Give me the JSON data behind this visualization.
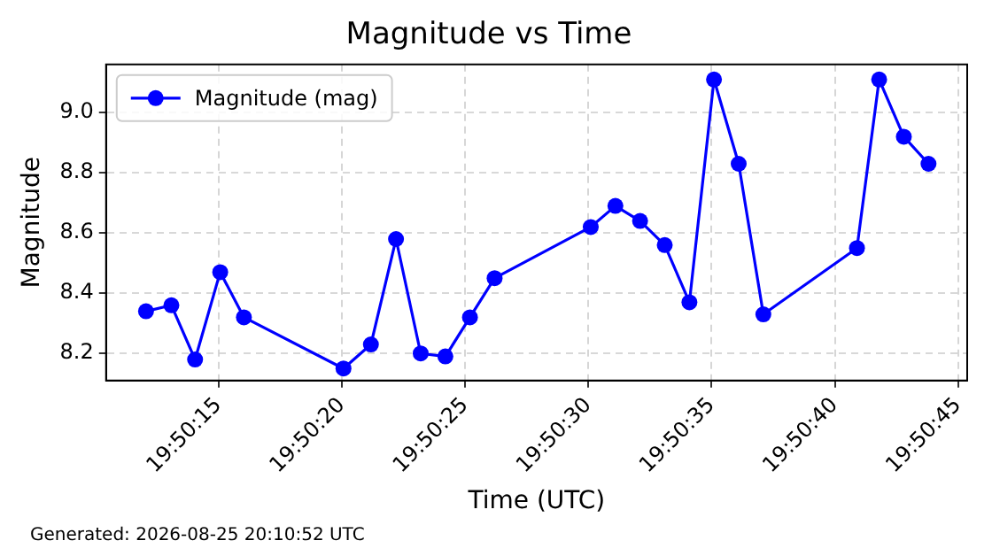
{
  "chart_data": {
    "type": "line",
    "title": "Magnitude vs Time",
    "xlabel": "Time (UTC)",
    "ylabel": "Magnitude",
    "x": [
      19.836683,
      19.836969,
      19.837236,
      19.837519,
      19.837786,
      19.838908,
      19.839217,
      19.8395,
      19.839778,
      19.840056,
      19.840333,
      19.840611,
      19.841694,
      19.841972,
      19.84225,
      19.842528,
      19.842806,
      19.843083,
      19.843361,
      19.843639,
      19.844694,
      19.844944,
      19.845222,
      19.8455
    ],
    "series": [
      {
        "name": "Magnitude (mag)",
        "color": "#0000ff",
        "values": [
          8.34,
          8.36,
          8.18,
          8.47,
          8.32,
          8.15,
          8.23,
          8.58,
          8.2,
          8.19,
          8.32,
          8.45,
          8.62,
          8.69,
          8.64,
          8.56,
          8.37,
          9.11,
          8.83,
          8.33,
          8.55,
          9.11,
          8.92,
          8.83
        ]
      }
    ],
    "xlim": [
      19.836233,
      19.845936
    ],
    "xticks": [
      {
        "value": 19.8375,
        "label": "19:50:15"
      },
      {
        "value": 19.838889,
        "label": "19:50:20"
      },
      {
        "value": 19.840278,
        "label": "19:50:25"
      },
      {
        "value": 19.841667,
        "label": "19:50:30"
      },
      {
        "value": 19.843056,
        "label": "19:50:35"
      },
      {
        "value": 19.844444,
        "label": "19:50:40"
      },
      {
        "value": 19.845833,
        "label": "19:50:45"
      }
    ],
    "ylim": [
      8.11,
      9.16
    ],
    "yticks": [
      {
        "value": 8.2,
        "label": "8.2"
      },
      {
        "value": 8.4,
        "label": "8.4"
      },
      {
        "value": 8.6,
        "label": "8.6"
      },
      {
        "value": 8.8,
        "label": "8.8"
      },
      {
        "value": 9.0,
        "label": "9.0"
      }
    ],
    "grid": true,
    "legend": "top left",
    "marker": "circle",
    "line_style": "solid",
    "annotations": [
      "Generated: 2026-08-25 20:10:52 UTC"
    ]
  }
}
